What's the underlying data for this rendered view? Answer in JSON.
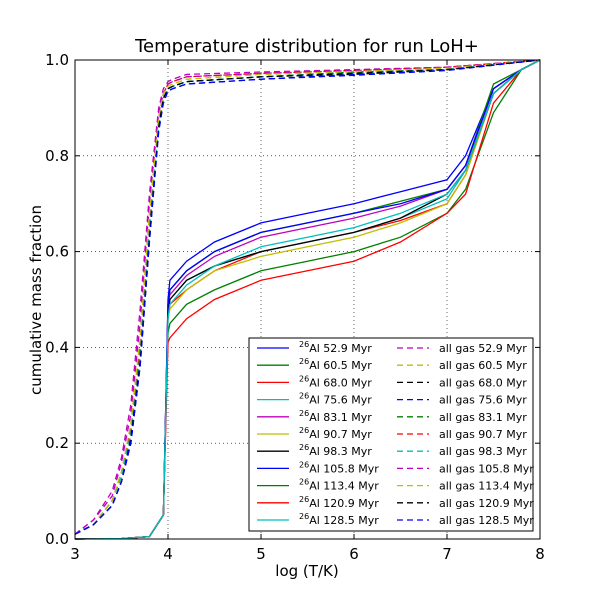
{
  "chart_data": {
    "type": "line",
    "title": "Temperature distribution for run LoH+",
    "xlabel": "log (T/K)",
    "ylabel": "cumulative mass fraction",
    "xlim": [
      3,
      8
    ],
    "ylim": [
      0,
      1
    ],
    "xticks": [
      "3",
      "4",
      "5",
      "6",
      "7",
      "8"
    ],
    "yticks": [
      "0.0",
      "0.2",
      "0.4",
      "0.6",
      "0.8",
      "1.0"
    ],
    "grid": true,
    "legend_position": "lower-right",
    "colors": {
      "blue": "#0000ff",
      "green": "#008000",
      "red": "#ff0000",
      "cyan": "#00bfbf",
      "magenta": "#bf00bf",
      "yellow": "#bfbf00",
      "black": "#000000"
    },
    "al_series": [
      {
        "isotope": "26",
        "name": "Al 52.9 Myr",
        "color": "#0000ff",
        "x": [
          3,
          3.5,
          3.8,
          3.95,
          4.0,
          4.02,
          4.2,
          4.5,
          5,
          5.5,
          6,
          6.5,
          7,
          7.2,
          7.5,
          7.8,
          8
        ],
        "y": [
          0,
          0.001,
          0.005,
          0.05,
          0.5,
          0.54,
          0.58,
          0.62,
          0.66,
          0.68,
          0.7,
          0.725,
          0.75,
          0.8,
          0.94,
          0.98,
          1.0
        ]
      },
      {
        "isotope": "26",
        "name": "Al 60.5 Myr",
        "color": "#008000",
        "x": [
          3,
          3.5,
          3.8,
          3.95,
          4.0,
          4.02,
          4.2,
          4.5,
          5,
          5.5,
          6,
          6.5,
          7,
          7.2,
          7.5,
          7.8,
          8
        ],
        "y": [
          0,
          0.001,
          0.005,
          0.05,
          0.48,
          0.52,
          0.56,
          0.6,
          0.64,
          0.66,
          0.68,
          0.705,
          0.73,
          0.78,
          0.95,
          0.98,
          1.0
        ]
      },
      {
        "isotope": "26",
        "name": "Al 68.0 Myr",
        "color": "#ff0000",
        "x": [
          3,
          3.5,
          3.8,
          3.95,
          4.0,
          4.02,
          4.2,
          4.5,
          5,
          5.5,
          6,
          6.5,
          7,
          7.2,
          7.5,
          7.8,
          8
        ],
        "y": [
          0,
          0.001,
          0.005,
          0.05,
          0.46,
          0.49,
          0.52,
          0.56,
          0.6,
          0.62,
          0.64,
          0.665,
          0.7,
          0.76,
          0.93,
          0.98,
          1.0
        ]
      },
      {
        "isotope": "26",
        "name": "Al 75.6 Myr",
        "color": "#00bfbf",
        "x": [
          3,
          3.5,
          3.8,
          3.95,
          4.0,
          4.02,
          4.2,
          4.5,
          5,
          5.5,
          6,
          6.5,
          7,
          7.2,
          7.5,
          7.8,
          8
        ],
        "y": [
          0,
          0.001,
          0.005,
          0.05,
          0.47,
          0.5,
          0.54,
          0.57,
          0.6,
          0.62,
          0.64,
          0.67,
          0.71,
          0.77,
          0.93,
          0.98,
          1.0
        ]
      },
      {
        "isotope": "26",
        "name": "Al 83.1 Myr",
        "color": "#bf00bf",
        "x": [
          3,
          3.5,
          3.8,
          3.95,
          4.0,
          4.02,
          4.2,
          4.5,
          5,
          5.5,
          6,
          6.5,
          7,
          7.2,
          7.5,
          7.8,
          8
        ],
        "y": [
          0,
          0.001,
          0.005,
          0.05,
          0.49,
          0.51,
          0.55,
          0.59,
          0.63,
          0.65,
          0.67,
          0.695,
          0.73,
          0.78,
          0.94,
          0.98,
          1.0
        ]
      },
      {
        "isotope": "26",
        "name": "Al 90.7 Myr",
        "color": "#bfbf00",
        "x": [
          3,
          3.5,
          3.8,
          3.95,
          4.0,
          4.02,
          4.2,
          4.5,
          5,
          5.5,
          6,
          6.5,
          7,
          7.2,
          7.5,
          7.8,
          8
        ],
        "y": [
          0,
          0.001,
          0.005,
          0.05,
          0.46,
          0.48,
          0.52,
          0.56,
          0.59,
          0.61,
          0.63,
          0.66,
          0.7,
          0.76,
          0.93,
          0.98,
          1.0
        ]
      },
      {
        "isotope": "26",
        "name": "Al 98.3 Myr",
        "color": "#000000",
        "x": [
          3,
          3.5,
          3.8,
          3.95,
          4.0,
          4.02,
          4.2,
          4.5,
          5,
          5.5,
          6,
          6.5,
          7,
          7.2,
          7.5,
          7.8,
          8
        ],
        "y": [
          0,
          0.001,
          0.005,
          0.05,
          0.47,
          0.5,
          0.54,
          0.57,
          0.6,
          0.62,
          0.64,
          0.67,
          0.72,
          0.77,
          0.93,
          0.98,
          1.0
        ]
      },
      {
        "isotope": "26",
        "name": "Al 105.8 Myr",
        "color": "#0000ff",
        "x": [
          3,
          3.5,
          3.8,
          3.95,
          4.0,
          4.02,
          4.2,
          4.5,
          5,
          5.5,
          6,
          6.5,
          7,
          7.2,
          7.5,
          7.8,
          8
        ],
        "y": [
          0,
          0.001,
          0.005,
          0.05,
          0.49,
          0.52,
          0.56,
          0.6,
          0.64,
          0.66,
          0.68,
          0.7,
          0.73,
          0.78,
          0.94,
          0.98,
          1.0
        ]
      },
      {
        "isotope": "26",
        "name": "Al 113.4 Myr",
        "color": "#008000",
        "x": [
          3,
          3.5,
          3.8,
          3.95,
          4.0,
          4.02,
          4.2,
          4.5,
          5,
          5.5,
          6,
          6.5,
          7,
          7.2,
          7.5,
          7.8,
          8
        ],
        "y": [
          0,
          0.001,
          0.005,
          0.05,
          0.43,
          0.45,
          0.49,
          0.52,
          0.56,
          0.58,
          0.6,
          0.63,
          0.68,
          0.73,
          0.89,
          0.98,
          1.0
        ]
      },
      {
        "isotope": "26",
        "name": "Al 120.9 Myr",
        "color": "#ff0000",
        "x": [
          3,
          3.5,
          3.8,
          3.95,
          4.0,
          4.02,
          4.2,
          4.5,
          5,
          5.5,
          6,
          6.5,
          7,
          7.2,
          7.5,
          7.8,
          8
        ],
        "y": [
          0,
          0.001,
          0.005,
          0.05,
          0.41,
          0.42,
          0.46,
          0.5,
          0.54,
          0.56,
          0.58,
          0.62,
          0.68,
          0.72,
          0.91,
          0.98,
          1.0
        ]
      },
      {
        "isotope": "26",
        "name": "Al 128.5 Myr",
        "color": "#00bfbf",
        "x": [
          3,
          3.5,
          3.8,
          3.95,
          4.0,
          4.02,
          4.2,
          4.5,
          5,
          5.5,
          6,
          6.5,
          7,
          7.2,
          7.5,
          7.8,
          8
        ],
        "y": [
          0,
          0.001,
          0.005,
          0.05,
          0.46,
          0.49,
          0.53,
          0.57,
          0.61,
          0.63,
          0.65,
          0.68,
          0.72,
          0.77,
          0.93,
          0.98,
          1.0
        ]
      }
    ],
    "gas_series": [
      {
        "name": "all gas 52.9 Myr",
        "color": "#bf00bf",
        "x": [
          3,
          3.2,
          3.4,
          3.5,
          3.6,
          3.7,
          3.8,
          3.9,
          3.95,
          4.0,
          4.05,
          4.2,
          5,
          6,
          7,
          8
        ],
        "y": [
          0.01,
          0.04,
          0.1,
          0.17,
          0.28,
          0.48,
          0.72,
          0.9,
          0.94,
          0.955,
          0.96,
          0.97,
          0.975,
          0.98,
          0.985,
          1.0
        ]
      },
      {
        "name": "all gas 60.5 Myr",
        "color": "#bfbf00",
        "x": [
          3,
          3.2,
          3.4,
          3.5,
          3.6,
          3.7,
          3.8,
          3.9,
          3.95,
          4.0,
          4.05,
          4.2,
          5,
          6,
          7,
          8
        ],
        "y": [
          0.01,
          0.03,
          0.08,
          0.14,
          0.23,
          0.4,
          0.66,
          0.87,
          0.93,
          0.945,
          0.95,
          0.96,
          0.97,
          0.975,
          0.98,
          1.0
        ]
      },
      {
        "name": "all gas 68.0 Myr",
        "color": "#000000",
        "x": [
          3,
          3.2,
          3.4,
          3.5,
          3.6,
          3.7,
          3.8,
          3.9,
          3.95,
          4.0,
          4.05,
          4.2,
          5,
          6,
          7,
          8
        ],
        "y": [
          0.01,
          0.03,
          0.07,
          0.12,
          0.2,
          0.36,
          0.62,
          0.86,
          0.92,
          0.94,
          0.945,
          0.955,
          0.965,
          0.97,
          0.98,
          1.0
        ]
      },
      {
        "name": "all gas 75.6 Myr",
        "color": "#0000ff",
        "x": [
          3,
          3.2,
          3.4,
          3.5,
          3.6,
          3.7,
          3.8,
          3.9,
          3.95,
          4.0,
          4.05,
          4.2,
          5,
          6,
          7,
          8
        ],
        "y": [
          0.01,
          0.03,
          0.07,
          0.12,
          0.2,
          0.37,
          0.63,
          0.86,
          0.92,
          0.935,
          0.94,
          0.95,
          0.96,
          0.97,
          0.98,
          1.0
        ]
      },
      {
        "name": "all gas 83.1 Myr",
        "color": "#008000",
        "x": [
          3,
          3.2,
          3.4,
          3.5,
          3.6,
          3.7,
          3.8,
          3.9,
          3.95,
          4.0,
          4.05,
          4.2,
          5,
          6,
          7,
          8
        ],
        "y": [
          0.01,
          0.03,
          0.08,
          0.13,
          0.22,
          0.39,
          0.65,
          0.87,
          0.92,
          0.94,
          0.945,
          0.955,
          0.965,
          0.975,
          0.98,
          1.0
        ]
      },
      {
        "name": "all gas 90.7 Myr",
        "color": "#ff0000",
        "x": [
          3,
          3.2,
          3.4,
          3.5,
          3.6,
          3.7,
          3.8,
          3.9,
          3.95,
          4.0,
          4.05,
          4.2,
          5,
          6,
          7,
          8
        ],
        "y": [
          0.01,
          0.03,
          0.08,
          0.14,
          0.23,
          0.41,
          0.67,
          0.88,
          0.93,
          0.95,
          0.955,
          0.965,
          0.972,
          0.978,
          0.985,
          1.0
        ]
      },
      {
        "name": "all gas 98.3 Myr",
        "color": "#00bfbf",
        "x": [
          3,
          3.2,
          3.4,
          3.5,
          3.6,
          3.7,
          3.8,
          3.9,
          3.95,
          4.0,
          4.05,
          4.2,
          5,
          6,
          7,
          8
        ],
        "y": [
          0.01,
          0.03,
          0.08,
          0.13,
          0.22,
          0.38,
          0.64,
          0.86,
          0.92,
          0.94,
          0.945,
          0.955,
          0.965,
          0.972,
          0.98,
          1.0
        ]
      },
      {
        "name": "all gas 105.8 Myr",
        "color": "#bf00bf",
        "x": [
          3,
          3.2,
          3.4,
          3.5,
          3.6,
          3.7,
          3.8,
          3.9,
          3.95,
          4.0,
          4.05,
          4.2,
          5,
          6,
          7,
          8
        ],
        "y": [
          0.01,
          0.04,
          0.09,
          0.16,
          0.26,
          0.45,
          0.7,
          0.89,
          0.93,
          0.95,
          0.955,
          0.965,
          0.972,
          0.978,
          0.985,
          1.0
        ]
      },
      {
        "name": "all gas 113.4 Myr",
        "color": "#bfbf00",
        "x": [
          3,
          3.2,
          3.4,
          3.5,
          3.6,
          3.7,
          3.8,
          3.9,
          3.95,
          4.0,
          4.05,
          4.2,
          5,
          6,
          7,
          8
        ],
        "y": [
          0.01,
          0.03,
          0.08,
          0.14,
          0.24,
          0.42,
          0.68,
          0.88,
          0.93,
          0.945,
          0.95,
          0.96,
          0.97,
          0.976,
          0.983,
          1.0
        ]
      },
      {
        "name": "all gas 120.9 Myr",
        "color": "#000000",
        "x": [
          3,
          3.2,
          3.4,
          3.5,
          3.6,
          3.7,
          3.8,
          3.9,
          3.95,
          4.0,
          4.05,
          4.2,
          5,
          6,
          7,
          8
        ],
        "y": [
          0.01,
          0.03,
          0.07,
          0.12,
          0.21,
          0.37,
          0.63,
          0.86,
          0.92,
          0.94,
          0.945,
          0.955,
          0.965,
          0.972,
          0.98,
          1.0
        ]
      },
      {
        "name": "all gas 128.5 Myr",
        "color": "#0000ff",
        "x": [
          3,
          3.2,
          3.4,
          3.5,
          3.6,
          3.7,
          3.8,
          3.9,
          3.95,
          4.0,
          4.05,
          4.2,
          5,
          6,
          7,
          8
        ],
        "y": [
          0.01,
          0.03,
          0.07,
          0.12,
          0.2,
          0.36,
          0.62,
          0.85,
          0.91,
          0.935,
          0.94,
          0.95,
          0.96,
          0.968,
          0.978,
          1.0
        ]
      }
    ]
  }
}
